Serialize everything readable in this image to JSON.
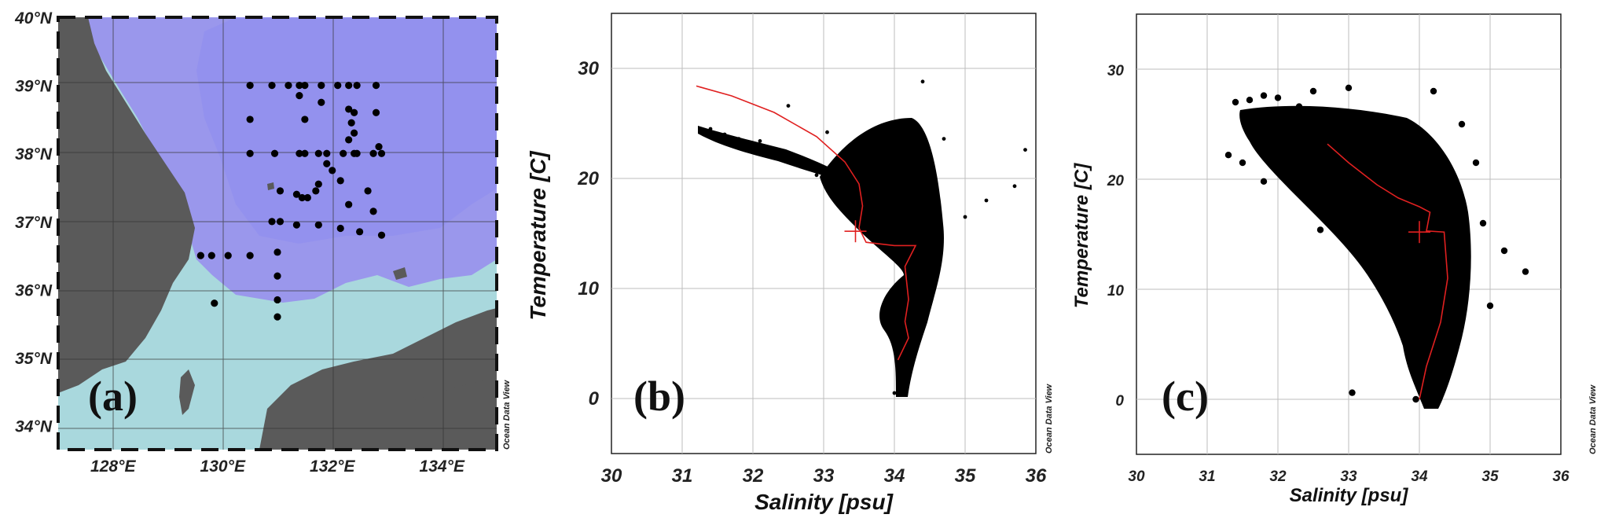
{
  "chart_data": [
    {
      "type": "scatter",
      "subtype": "map",
      "panel_label": "(a)",
      "x_ticks": [
        "128°E",
        "130°E",
        "132°E",
        "134°E"
      ],
      "x_tick_values": [
        128,
        130,
        132,
        134
      ],
      "y_ticks": [
        "34°N",
        "35°N",
        "36°N",
        "37°N",
        "38°N",
        "39°N",
        "40°N"
      ],
      "y_tick_values": [
        34,
        35,
        36,
        37,
        38,
        39,
        40
      ],
      "xlim": [
        127,
        135
      ],
      "ylim": [
        33.65,
        40
      ],
      "watermark": "Ocean Data View",
      "points": [
        [
          130.5,
          39.0
        ],
        [
          130.9,
          39.0
        ],
        [
          131.2,
          39.0
        ],
        [
          131.4,
          39.0
        ],
        [
          131.5,
          39.0
        ],
        [
          131.8,
          39.0
        ],
        [
          132.1,
          39.0
        ],
        [
          132.3,
          39.0
        ],
        [
          132.45,
          39.0
        ],
        [
          132.8,
          39.0
        ],
        [
          131.4,
          38.85
        ],
        [
          131.8,
          38.75
        ],
        [
          132.3,
          38.65
        ],
        [
          132.4,
          38.6
        ],
        [
          132.8,
          38.6
        ],
        [
          130.5,
          38.5
        ],
        [
          131.5,
          38.5
        ],
        [
          132.35,
          38.45
        ],
        [
          132.4,
          38.3
        ],
        [
          132.3,
          38.2
        ],
        [
          132.85,
          38.1
        ],
        [
          130.5,
          38.0
        ],
        [
          130.95,
          38.0
        ],
        [
          131.4,
          38.0
        ],
        [
          131.5,
          38.0
        ],
        [
          131.75,
          38.0
        ],
        [
          131.9,
          38.0
        ],
        [
          132.2,
          38.0
        ],
        [
          132.4,
          38.0
        ],
        [
          132.45,
          38.0
        ],
        [
          132.75,
          38.0
        ],
        [
          132.9,
          38.0
        ],
        [
          131.9,
          37.85
        ],
        [
          132.0,
          37.75
        ],
        [
          132.15,
          37.6
        ],
        [
          131.75,
          37.55
        ],
        [
          131.7,
          37.45
        ],
        [
          131.05,
          37.45
        ],
        [
          131.35,
          37.4
        ],
        [
          131.45,
          37.35
        ],
        [
          131.55,
          37.35
        ],
        [
          132.65,
          37.45
        ],
        [
          132.3,
          37.25
        ],
        [
          132.75,
          37.15
        ],
        [
          130.9,
          37.0
        ],
        [
          131.05,
          37.0
        ],
        [
          131.35,
          36.95
        ],
        [
          131.75,
          36.95
        ],
        [
          132.15,
          36.9
        ],
        [
          132.5,
          36.85
        ],
        [
          132.9,
          36.8
        ],
        [
          131.0,
          36.55
        ],
        [
          129.6,
          36.5
        ],
        [
          129.8,
          36.5
        ],
        [
          130.1,
          36.5
        ],
        [
          130.5,
          36.5
        ],
        [
          131.0,
          36.2
        ],
        [
          131.0,
          35.85
        ],
        [
          129.85,
          35.8
        ],
        [
          131.0,
          35.6
        ]
      ]
    },
    {
      "type": "scatter",
      "panel_label": "(b)",
      "xlabel": "Salinity [psu]",
      "ylabel": "Temperature [C]",
      "xlim": [
        30,
        36
      ],
      "ylim": [
        -5,
        35
      ],
      "x_ticks": [
        30,
        31,
        32,
        33,
        34,
        35,
        36
      ],
      "y_ticks": [
        0,
        10,
        20,
        30
      ],
      "watermark": "Ocean Data View",
      "series": [
        {
          "kind": "points",
          "color": "#000000",
          "values": [
            [
              31.4,
              24.5
            ],
            [
              31.6,
              24.0
            ],
            [
              31.8,
              23.6
            ],
            [
              32.1,
              23.4
            ],
            [
              32.4,
              22.5
            ],
            [
              32.7,
              21.5
            ],
            [
              32.9,
              20.3
            ],
            [
              33.1,
              19.5
            ],
            [
              33.3,
              18.6
            ],
            [
              33.6,
              18.2
            ],
            [
              33.8,
              17.5
            ],
            [
              34.0,
              17.2
            ],
            [
              34.2,
              16.4
            ],
            [
              34.35,
              15.2
            ],
            [
              34.45,
              13.5
            ],
            [
              34.4,
              12.0
            ],
            [
              34.35,
              10.0
            ],
            [
              34.3,
              8.0
            ],
            [
              34.2,
              6.0
            ],
            [
              34.1,
              4.0
            ],
            [
              34.05,
              2.0
            ],
            [
              34.0,
              0.5
            ],
            [
              34.3,
              24.8
            ],
            [
              34.2,
              22.0
            ],
            [
              34.5,
              19.0
            ],
            [
              34.55,
              16.0
            ],
            [
              34.6,
              14.5
            ],
            [
              35.0,
              16.5
            ],
            [
              35.3,
              18.0
            ],
            [
              35.7,
              19.3
            ],
            [
              35.85,
              22.6
            ],
            [
              34.4,
              28.8
            ],
            [
              34.7,
              23.6
            ],
            [
              32.5,
              26.6
            ],
            [
              33.05,
              24.2
            ]
          ]
        },
        {
          "kind": "mean-line",
          "color": "#e02020",
          "values": [
            [
              31.2,
              28.4
            ],
            [
              31.7,
              27.5
            ],
            [
              32.3,
              26.0
            ],
            [
              32.9,
              23.8
            ],
            [
              33.3,
              21.5
            ],
            [
              33.5,
              19.5
            ],
            [
              33.55,
              17.5
            ],
            [
              33.5,
              15.5
            ],
            [
              33.6,
              14.2
            ],
            [
              34.0,
              13.9
            ],
            [
              34.3,
              13.9
            ],
            [
              34.15,
              12.0
            ],
            [
              34.2,
              9.0
            ],
            [
              34.15,
              7.0
            ],
            [
              34.2,
              5.5
            ],
            [
              34.05,
              3.5
            ]
          ],
          "cross": [
            33.45,
            15.2
          ]
        }
      ]
    },
    {
      "type": "scatter",
      "panel_label": "(c)",
      "xlabel": "Salinity [psu]",
      "ylabel": "Temperature [C]",
      "xlim": [
        30,
        36
      ],
      "ylim": [
        -5,
        35
      ],
      "x_ticks": [
        30,
        31,
        32,
        33,
        34,
        35,
        36
      ],
      "y_ticks": [
        0,
        10,
        20,
        30
      ],
      "watermark": "Ocean Data View",
      "series": [
        {
          "kind": "points",
          "color": "#000000",
          "values": [
            [
              31.4,
              27.0
            ],
            [
              31.6,
              27.2
            ],
            [
              31.8,
              27.6
            ],
            [
              32.0,
              27.4
            ],
            [
              32.3,
              26.6
            ],
            [
              32.5,
              26.0
            ],
            [
              32.7,
              24.8
            ],
            [
              32.9,
              23.6
            ],
            [
              33.1,
              22.5
            ],
            [
              33.3,
              21.0
            ],
            [
              33.5,
              19.8
            ],
            [
              33.7,
              18.5
            ],
            [
              33.9,
              17.0
            ],
            [
              34.1,
              15.5
            ],
            [
              34.3,
              13.5
            ],
            [
              34.4,
              11.0
            ],
            [
              34.35,
              8.5
            ],
            [
              34.25,
              6.0
            ],
            [
              34.15,
              3.5
            ],
            [
              34.05,
              1.0
            ],
            [
              33.95,
              0.0
            ],
            [
              31.3,
              22.2
            ],
            [
              31.5,
              21.5
            ],
            [
              31.8,
              19.8
            ],
            [
              32.0,
              21.2
            ],
            [
              32.4,
              18.5
            ],
            [
              32.6,
              15.4
            ],
            [
              32.9,
              17.0
            ],
            [
              33.2,
              14.0
            ],
            [
              33.5,
              11.0
            ],
            [
              33.7,
              8.0
            ],
            [
              33.05,
              0.6
            ],
            [
              34.2,
              28.0
            ],
            [
              34.6,
              25.0
            ],
            [
              34.8,
              21.5
            ],
            [
              34.9,
              16.0
            ],
            [
              35.2,
              13.5
            ],
            [
              35.5,
              11.6
            ],
            [
              35.0,
              8.5
            ],
            [
              33.0,
              28.3
            ],
            [
              32.5,
              28.0
            ]
          ]
        },
        {
          "kind": "mean-line",
          "color": "#e02020",
          "values": [
            [
              32.7,
              23.2
            ],
            [
              33.0,
              21.5
            ],
            [
              33.4,
              19.5
            ],
            [
              33.7,
              18.3
            ],
            [
              34.0,
              17.5
            ],
            [
              34.15,
              17.0
            ],
            [
              34.1,
              15.3
            ],
            [
              34.35,
              15.2
            ],
            [
              34.4,
              11.0
            ],
            [
              34.3,
              7.0
            ],
            [
              34.1,
              3.0
            ],
            [
              34.0,
              0.0
            ]
          ],
          "cross": [
            34.0,
            15.2
          ]
        }
      ]
    }
  ]
}
